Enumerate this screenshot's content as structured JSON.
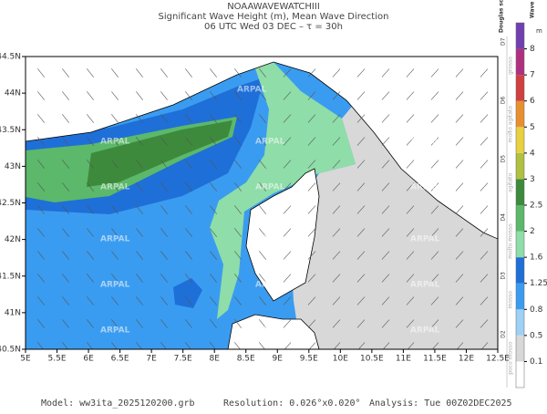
{
  "header": {
    "model_name": "NOAAWAVEWATCHIII",
    "title": "Significant Wave Height (m), Mean Wave Direction",
    "subtitle": "06 UTC Wed 03 DEC  –  τ = 30h"
  },
  "map": {
    "xlim": [
      5,
      12.5
    ],
    "ylim": [
      40.5,
      44.5
    ],
    "xticks": [
      {
        "value": 5,
        "label": "5E"
      },
      {
        "value": 5.5,
        "label": "5.5E"
      },
      {
        "value": 6,
        "label": "6E"
      },
      {
        "value": 6.5,
        "label": "6.5E"
      },
      {
        "value": 7,
        "label": "7E"
      },
      {
        "value": 7.5,
        "label": "7.5E"
      },
      {
        "value": 8,
        "label": "8E"
      },
      {
        "value": 8.5,
        "label": "8.5E"
      },
      {
        "value": 9,
        "label": "9E"
      },
      {
        "value": 9.5,
        "label": "9.5E"
      },
      {
        "value": 10,
        "label": "10E"
      },
      {
        "value": 10.5,
        "label": "10.5E"
      },
      {
        "value": 11,
        "label": "11E"
      },
      {
        "value": 11.5,
        "label": "11.5E"
      },
      {
        "value": 12,
        "label": "12E"
      },
      {
        "value": 12.5,
        "label": "12.5E"
      }
    ],
    "yticks": [
      {
        "value": 40.5,
        "label": "40.5N"
      },
      {
        "value": 41,
        "label": "41N"
      },
      {
        "value": 41.5,
        "label": "41.5N"
      },
      {
        "value": 42,
        "label": "42N"
      },
      {
        "value": 42.5,
        "label": "42.5N"
      },
      {
        "value": 43,
        "label": "43N"
      },
      {
        "value": 43.5,
        "label": "43.5N"
      },
      {
        "value": 44,
        "label": "44N"
      },
      {
        "value": 44.5,
        "label": "44.5N"
      }
    ],
    "watermark": "ARPAL"
  },
  "colorbar": {
    "title": "Wave height",
    "unit": "m",
    "ticks": [
      0.1,
      0.5,
      0.8,
      1.25,
      1.6,
      2,
      2.5,
      3,
      4,
      5,
      6,
      7,
      8
    ],
    "colors": [
      "#ffffff",
      "#d8d8d8",
      "#9fd0f5",
      "#3a9cf0",
      "#1f6fd8",
      "#8fdda8",
      "#5cb86a",
      "#3d8a3c",
      "#b0c040",
      "#e8d040",
      "#e89030",
      "#d04040",
      "#b03080",
      "#7040b0"
    ]
  },
  "douglas": {
    "title": "Douglas scale",
    "levels": [
      "D2",
      "D3",
      "D4",
      "D5",
      "D6",
      "D7"
    ],
    "descriptions": [
      "poco mosso",
      "mosso",
      "molto mosso",
      "agitato",
      "molto agitato",
      "grosso"
    ]
  },
  "footer": {
    "model": "Model: ww3ita_2025120200.grb",
    "resolution": "Resolution: 0.026°x0.020°",
    "analysis": "Analysis: Tue 00Z02DEC2025"
  }
}
